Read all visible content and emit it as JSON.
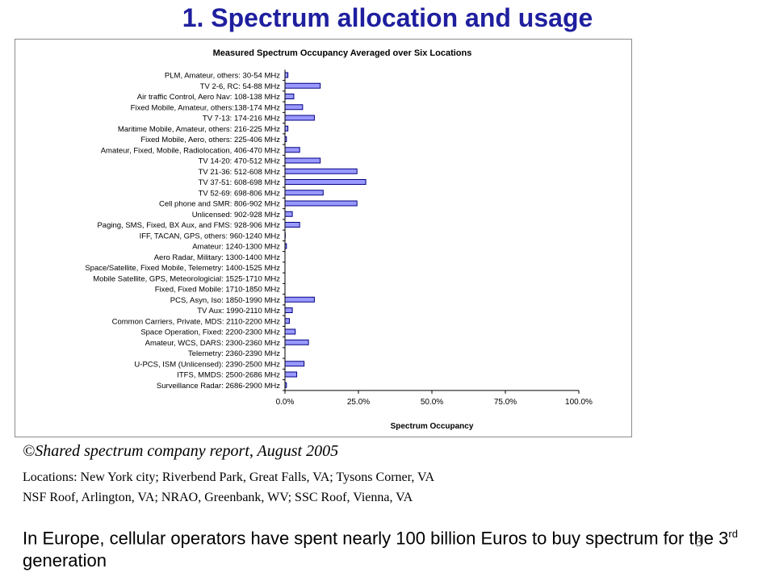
{
  "slide": {
    "title": "1. Spectrum allocation and usage",
    "credit": "©Shared spectrum company report, August 2005",
    "locations_line1": "Locations: New York city; Riverbend Park, Great Falls, VA; Tysons Corner, VA",
    "locations_line2": "NSF Roof, Arlington, VA; NRAO, Greenbank, WV; SSC Roof, Vienna, VA",
    "europe_text_before": "In Europe, cellular operators have spent nearly 100 billion Euros to buy spectrum for the 3",
    "europe_superscript": "rd",
    "europe_text_after": " generation",
    "slide_number": "3"
  },
  "chart_data": {
    "type": "bar",
    "orientation": "horizontal",
    "title": "Measured Spectrum Occupancy Averaged over Six Locations",
    "xlabel": "Spectrum Occupancy",
    "ylabel": "",
    "xlim": [
      0,
      100
    ],
    "x_unit": "%",
    "xticks": [
      0,
      25,
      50,
      75,
      100
    ],
    "xtick_labels": [
      "0.0%",
      "25.0%",
      "50.0%",
      "75.0%",
      "100.0%"
    ],
    "bar_color": "#9999ff",
    "bar_edge_color": "#000080",
    "grid": false,
    "categories": [
      "PLM, Amateur, others: 30-54 MHz",
      "TV 2-6, RC: 54-88 MHz",
      "Air traffic Control, Aero Nav: 108-138 MHz",
      "Fixed Mobile, Amateur, others:138-174 MHz",
      "TV 7-13: 174-216 MHz",
      "Maritime Mobile, Amateur, others: 216-225 MHz",
      "Fixed Mobile, Aero, others: 225-406 MHz",
      "Amateur, Fixed, Mobile, Radiolocation, 406-470 MHz",
      "TV 14-20: 470-512 MHz",
      "TV 21-36: 512-608 MHz",
      "TV 37-51: 608-698 MHz",
      "TV 52-69: 698-806 MHz",
      "Cell phone and SMR: 806-902 MHz",
      "Unlicensed: 902-928 MHz",
      "Paging, SMS, Fixed, BX Aux, and FMS: 928-906 MHz",
      "IFF, TACAN, GPS, others: 960-1240 MHz",
      "Amateur: 1240-1300 MHz",
      "Aero Radar, Military: 1300-1400 MHz",
      "Space/Satellite, Fixed Mobile, Telemetry: 1400-1525 MHz",
      "Mobile Satellite, GPS, Meteorologicial: 1525-1710 MHz",
      "Fixed, Fixed Mobile: 1710-1850 MHz",
      "PCS, Asyn, Iso: 1850-1990 MHz",
      "TV Aux: 1990-2110 MHz",
      "Common Carriers, Private, MDS: 2110-2200 MHz",
      "Space Operation, Fixed: 2200-2300 MHz",
      "Amateur, WCS, DARS: 2300-2360 MHz",
      "Telemetry: 2360-2390 MHz",
      "U-PCS, ISM (Unlicensed): 2390-2500 MHz",
      "ITFS, MMDS: 2500-2686 MHz",
      "Surveillance Radar: 2686-2900 MHz"
    ],
    "values": [
      1.0,
      12.0,
      3.0,
      6.0,
      10.0,
      1.0,
      0.5,
      5.0,
      12.0,
      24.5,
      27.5,
      13.0,
      24.5,
      2.5,
      5.0,
      0.1,
      0.5,
      0,
      0,
      0,
      0,
      10.0,
      2.5,
      1.5,
      3.5,
      8.0,
      0,
      6.5,
      4.0,
      0.5
    ]
  }
}
